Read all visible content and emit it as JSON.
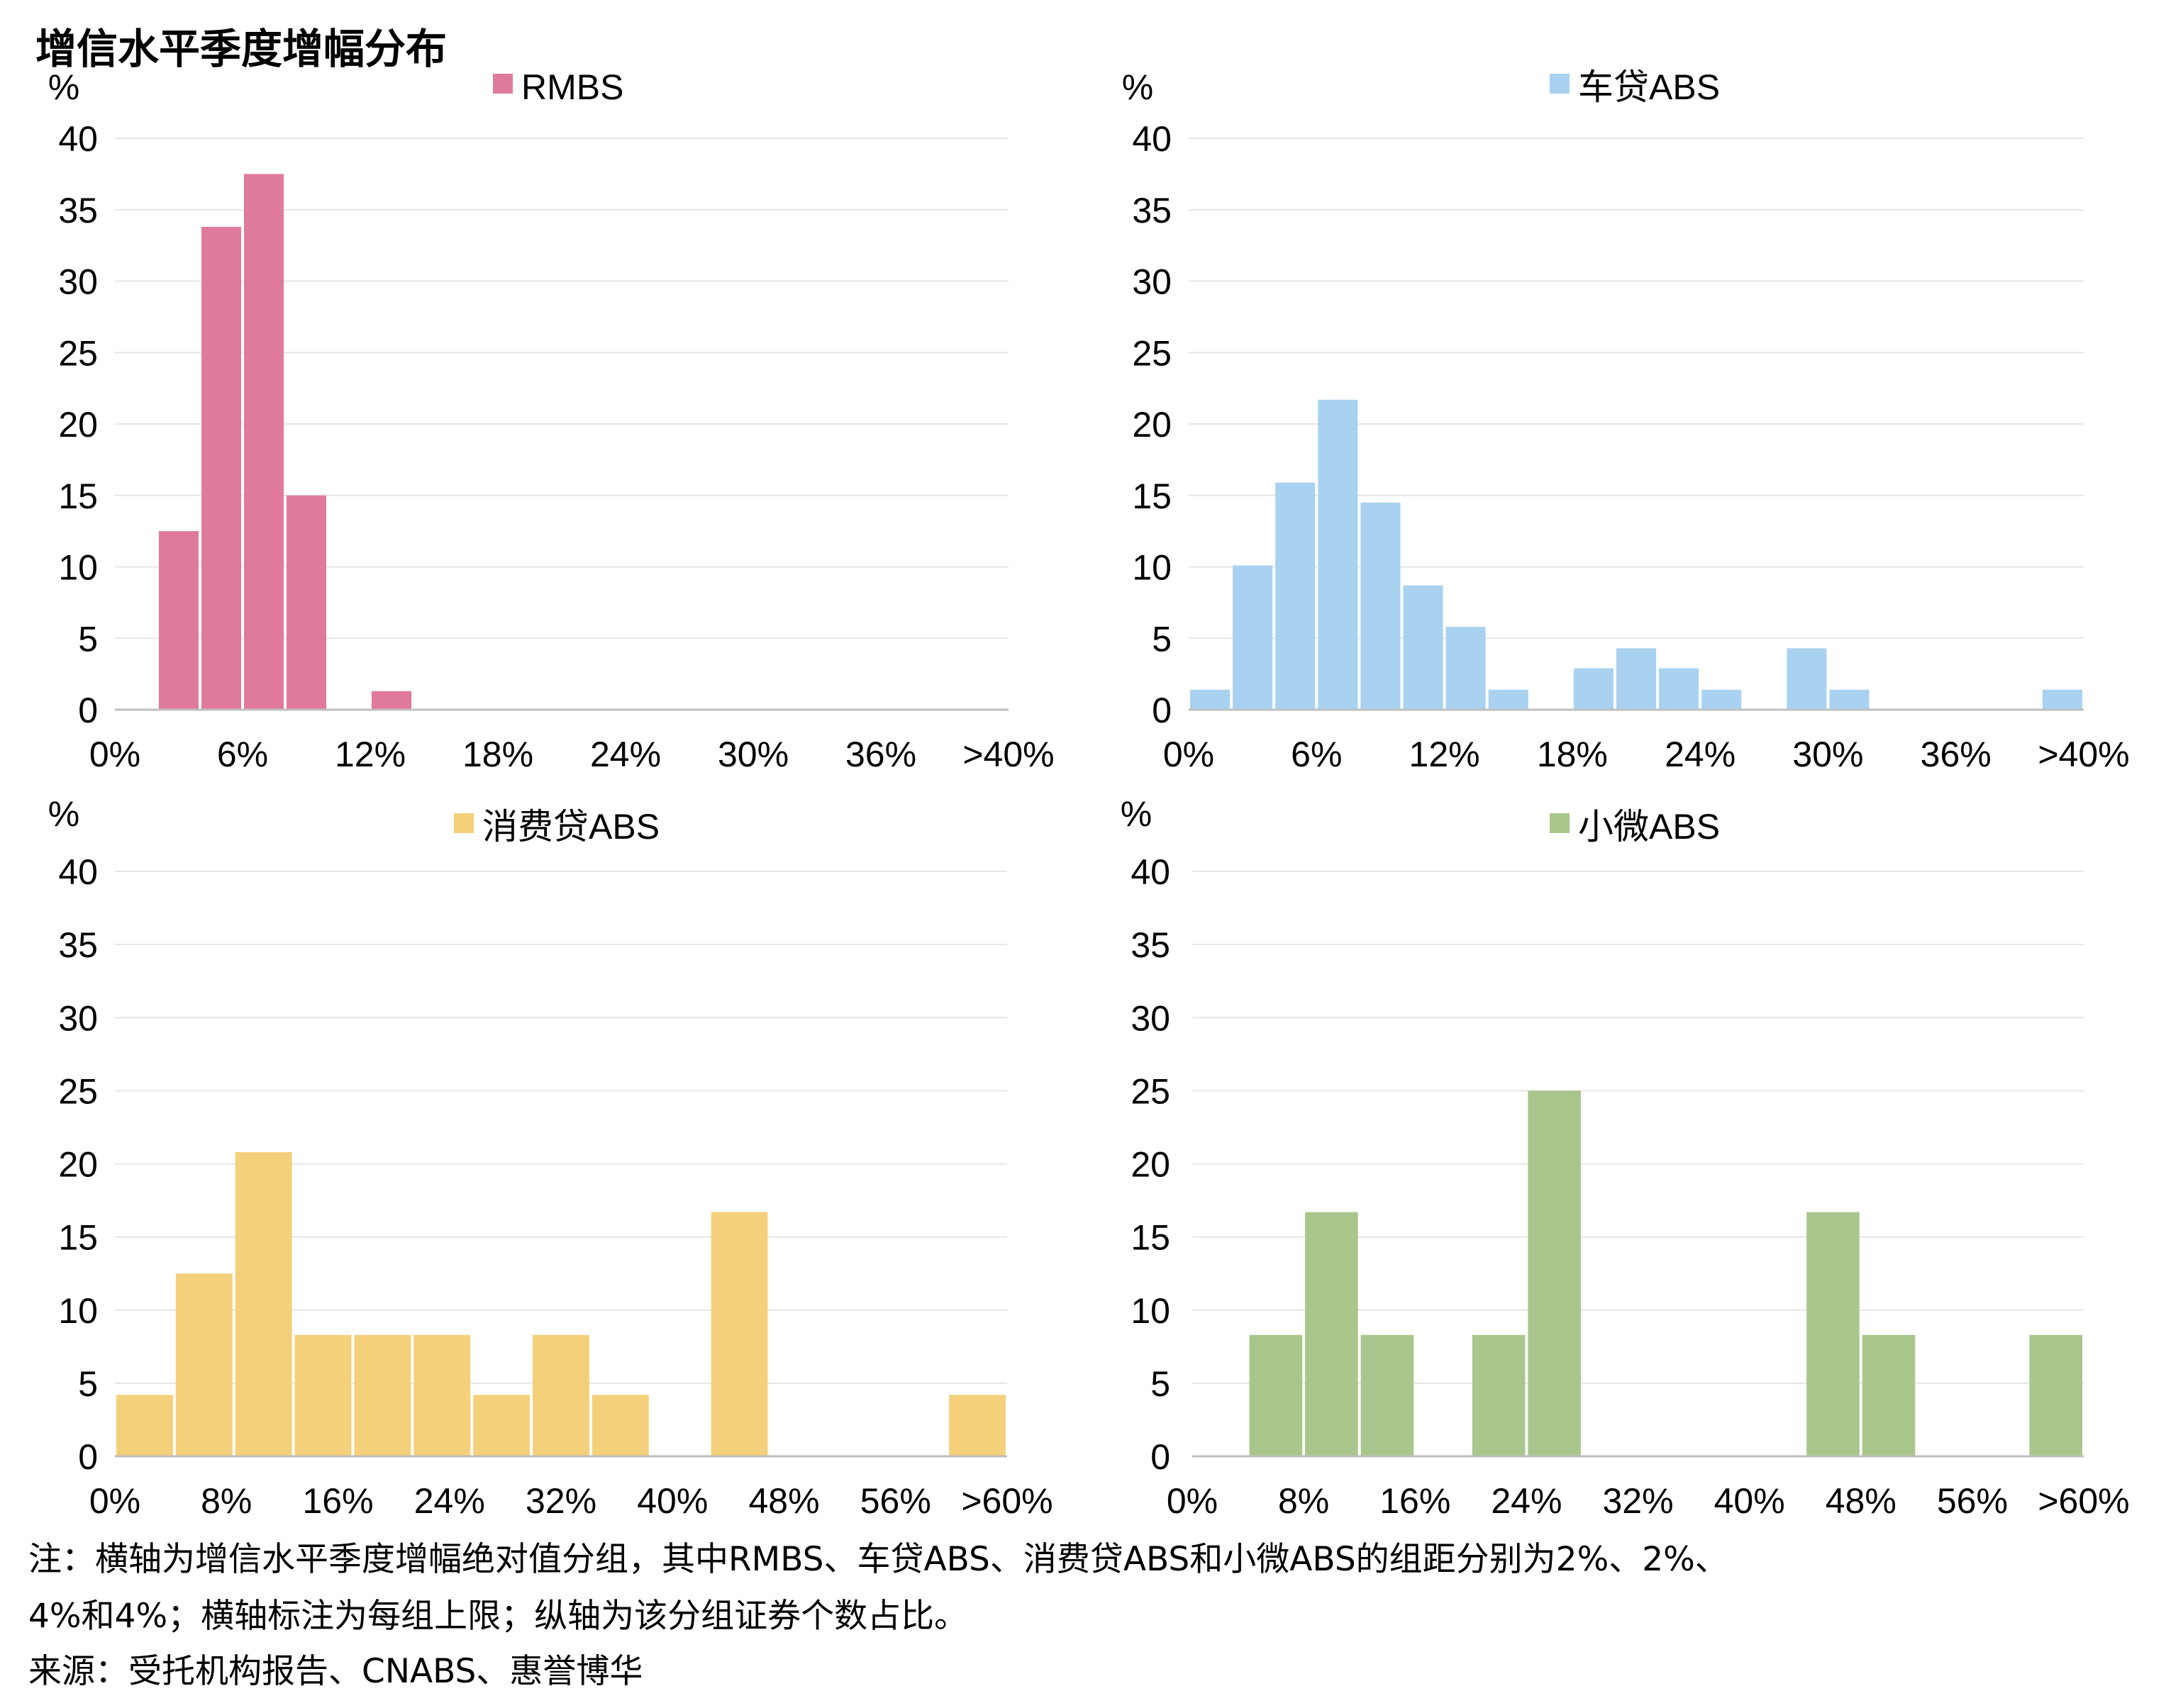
{
  "title": "增信水平季度增幅分布",
  "notes": {
    "line1": "注：横轴为增信水平季度增幅绝对值分组，其中RMBS、车贷ABS、消费贷ABS和小微ABS的组距分别为2%、2%、",
    "line2": "4%和4%；横轴标注为每组上限；纵轴为该分组证券个数占比。",
    "source": "来源：受托机构报告、CNABS、惠誉博华"
  },
  "chart_data": [
    {
      "type": "bar",
      "ylabel": "%",
      "ylim": [
        0,
        40
      ],
      "yticks": [
        "0",
        "5",
        "10",
        "15",
        "20",
        "25",
        "30",
        "35",
        "40"
      ],
      "x_tick_labels": [
        "0%",
        "6%",
        "12%",
        "18%",
        "24%",
        "30%",
        "36%",
        ">40%"
      ],
      "bin_width_pct": 2,
      "grid": true,
      "legend": "top-center",
      "color": "#e07a9a",
      "series": [
        {
          "name": "RMBS",
          "values": [
            0,
            12.5,
            33.8,
            37.5,
            15,
            0,
            1.3,
            0,
            0,
            0,
            0,
            0,
            0,
            0,
            0,
            0,
            0,
            0,
            0,
            0,
            0
          ]
        }
      ]
    },
    {
      "type": "bar",
      "ylabel": "%",
      "ylim": [
        0,
        40
      ],
      "yticks": [
        "0",
        "5",
        "10",
        "15",
        "20",
        "25",
        "30",
        "35",
        "40"
      ],
      "x_tick_labels": [
        "0%",
        "6%",
        "12%",
        "18%",
        "24%",
        "30%",
        "36%",
        ">40%"
      ],
      "bin_width_pct": 2,
      "grid": true,
      "legend": "top-center",
      "color": "#a9d2f0",
      "series": [
        {
          "name": "车贷ABS",
          "values": [
            1.4,
            10.1,
            15.9,
            21.7,
            14.5,
            8.7,
            5.8,
            1.4,
            0,
            2.9,
            4.3,
            2.9,
            1.4,
            0,
            4.3,
            1.4,
            0,
            0,
            0,
            0,
            1.4
          ]
        }
      ]
    },
    {
      "type": "bar",
      "ylabel": "%",
      "ylim": [
        0,
        40
      ],
      "yticks": [
        "0",
        "5",
        "10",
        "15",
        "20",
        "25",
        "30",
        "35",
        "40"
      ],
      "x_tick_labels": [
        "0%",
        "8%",
        "16%",
        "24%",
        "32%",
        "40%",
        "48%",
        "56%",
        ">60%"
      ],
      "bin_width_pct": 4,
      "grid": true,
      "legend": "top-center",
      "color": "#f5d07a",
      "series": [
        {
          "name": "消费贷ABS",
          "values": [
            4.2,
            12.5,
            20.8,
            8.3,
            8.3,
            8.3,
            4.2,
            8.3,
            4.2,
            0,
            16.7,
            0,
            0,
            0,
            4.2
          ]
        }
      ]
    },
    {
      "type": "bar",
      "ylabel": "%",
      "ylim": [
        0,
        40
      ],
      "yticks": [
        "0",
        "5",
        "10",
        "15",
        "20",
        "25",
        "30",
        "35",
        "40"
      ],
      "x_tick_labels": [
        "0%",
        "8%",
        "16%",
        "24%",
        "32%",
        "40%",
        "48%",
        "56%",
        ">60%"
      ],
      "bin_width_pct": 4,
      "grid": true,
      "legend": "top-center",
      "color": "#a9c68c",
      "series": [
        {
          "name": "小微ABS",
          "values": [
            0,
            8.3,
            16.7,
            8.3,
            0,
            8.3,
            25,
            0,
            0,
            0,
            0,
            16.7,
            8.3,
            0,
            0,
            8.3
          ]
        }
      ]
    }
  ]
}
